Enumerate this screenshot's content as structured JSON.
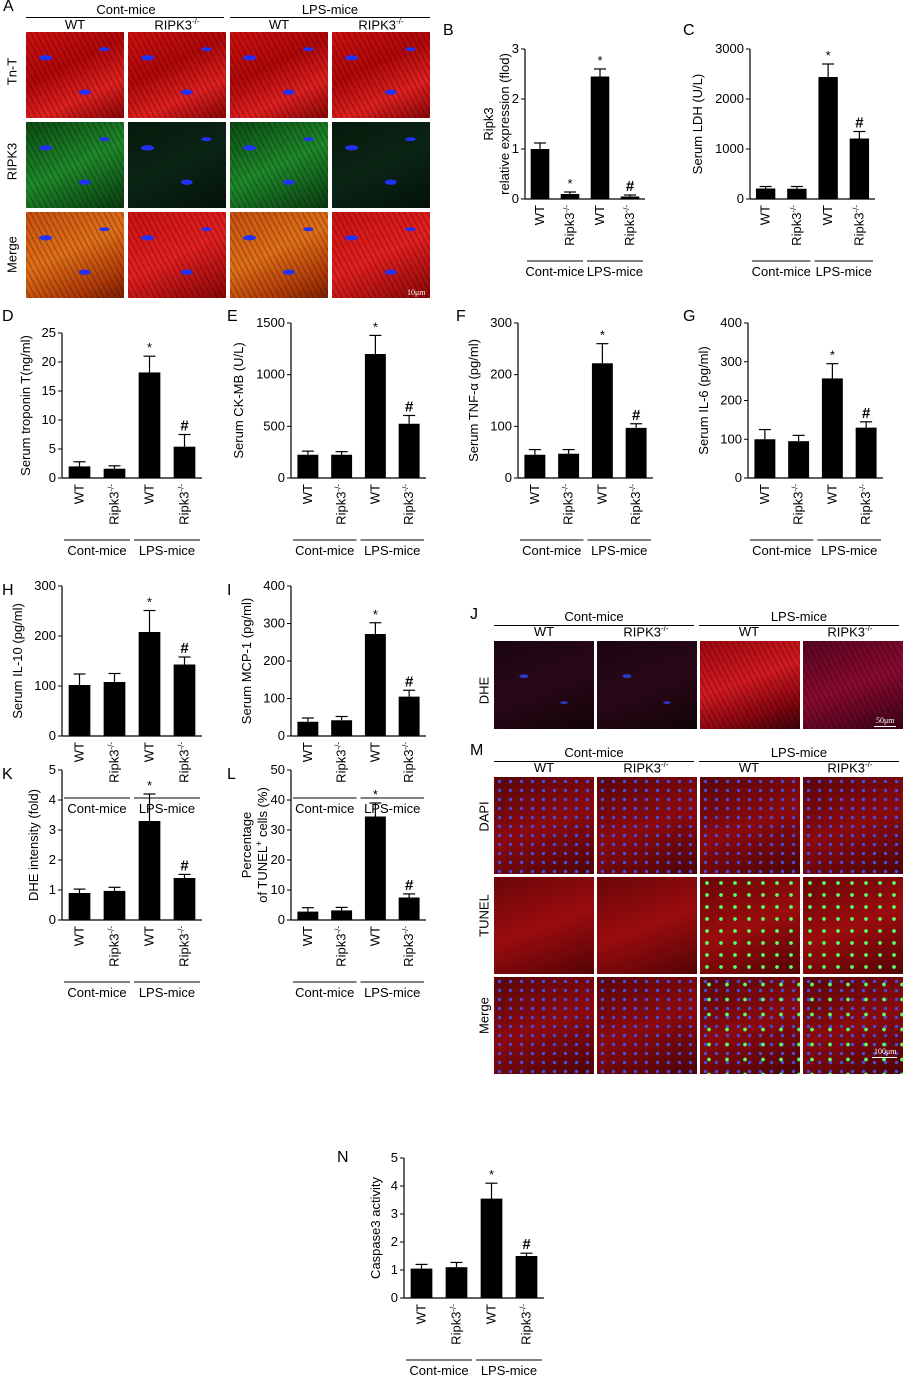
{
  "panel_A": {
    "letter": "A",
    "groups": [
      "Cont-mice",
      "LPS-mice"
    ],
    "columns": [
      "WT",
      "RIPK3",
      "WT",
      "RIPK3"
    ],
    "rows": [
      "Tn-T",
      "RIPK3",
      "Merge"
    ],
    "scale": "10μm"
  },
  "panel_J": {
    "letter": "J",
    "groups": [
      "Cont-mice",
      "LPS-mice"
    ],
    "columns": [
      "WT",
      "RIPK3",
      "WT",
      "RIPK3"
    ],
    "rows": [
      "DHE"
    ],
    "scale": "50μm"
  },
  "panel_M": {
    "letter": "M",
    "groups": [
      "Cont-mice",
      "LPS-mice"
    ],
    "columns": [
      "WT",
      "RIPK3",
      "WT",
      "RIPK3"
    ],
    "rows": [
      "DAPI",
      "TUNEL",
      "Merge"
    ],
    "scale": "100μm"
  },
  "chart_data": [
    {
      "id": "B",
      "type": "bar",
      "categories": [
        "WT",
        "Ripk3-/-",
        "WT",
        "Ripk3-/-"
      ],
      "groups": [
        "Cont-mice",
        "LPS-mice"
      ],
      "values": [
        1.0,
        0.1,
        2.45,
        0.05
      ],
      "errors": [
        0.12,
        0.04,
        0.15,
        0.03
      ],
      "marks": [
        "",
        "*",
        "*",
        "#"
      ],
      "ylabel": "Ripk3 relative expression (flod)",
      "ylim": [
        0,
        3
      ],
      "yticks": [
        0,
        1,
        2,
        3
      ]
    },
    {
      "id": "C",
      "type": "bar",
      "categories": [
        "WT",
        "Ripk3-/-",
        "WT",
        "Ripk3-/-"
      ],
      "groups": [
        "Cont-mice",
        "LPS-mice"
      ],
      "values": [
        210,
        205,
        2440,
        1210
      ],
      "errors": [
        40,
        45,
        260,
        140
      ],
      "marks": [
        "",
        "",
        "*",
        "#"
      ],
      "ylabel": "Serum LDH (U/L)",
      "ylim": [
        0,
        3000
      ],
      "yticks": [
        0,
        1000,
        2000,
        3000
      ]
    },
    {
      "id": "D",
      "type": "bar",
      "categories": [
        "WT",
        "Ripk3-/-",
        "WT",
        "Ripk3-/-"
      ],
      "groups": [
        "Cont-mice",
        "LPS-mice"
      ],
      "values": [
        2.0,
        1.6,
        18.2,
        5.4
      ],
      "errors": [
        0.8,
        0.5,
        2.8,
        2.1
      ],
      "marks": [
        "",
        "",
        "*",
        "#"
      ],
      "ylabel": "Serum troponin T(ng/ml)",
      "ylim": [
        0,
        25
      ],
      "yticks": [
        0,
        5,
        10,
        15,
        20,
        25
      ]
    },
    {
      "id": "E",
      "type": "bar",
      "categories": [
        "WT",
        "Ripk3-/-",
        "WT",
        "Ripk3-/-"
      ],
      "groups": [
        "Cont-mice",
        "LPS-mice"
      ],
      "values": [
        225,
        225,
        1200,
        525
      ],
      "errors": [
        35,
        30,
        180,
        80
      ],
      "marks": [
        "",
        "",
        "*",
        "#"
      ],
      "ylabel": "Serum CK-MB (U/L)",
      "ylim": [
        0,
        1500
      ],
      "yticks": [
        0,
        500,
        1000,
        1500
      ]
    },
    {
      "id": "F",
      "type": "bar",
      "categories": [
        "WT",
        "Ripk3-/-",
        "WT",
        "Ripk3-/-"
      ],
      "groups": [
        "Cont-mice",
        "LPS-mice"
      ],
      "values": [
        45,
        47,
        222,
        97
      ],
      "errors": [
        10,
        8,
        38,
        8
      ],
      "marks": [
        "",
        "",
        "*",
        "#"
      ],
      "ylabel": "Serum TNF-α (pg/ml)",
      "ylim": [
        0,
        300
      ],
      "yticks": [
        0,
        100,
        200,
        300
      ]
    },
    {
      "id": "G",
      "type": "bar",
      "categories": [
        "WT",
        "Ripk3-/-",
        "WT",
        "Ripk3-/-"
      ],
      "groups": [
        "Cont-mice",
        "LPS-mice"
      ],
      "values": [
        100,
        95,
        257,
        130
      ],
      "errors": [
        25,
        15,
        38,
        15
      ],
      "marks": [
        "",
        "",
        "*",
        "#"
      ],
      "ylabel": "Serum IL-6 (pg/ml)",
      "ylim": [
        0,
        400
      ],
      "yticks": [
        0,
        100,
        200,
        300,
        400
      ]
    },
    {
      "id": "H",
      "type": "bar",
      "categories": [
        "WT",
        "Ripk3-/-",
        "WT",
        "Ripk3-/-"
      ],
      "groups": [
        "Cont-mice",
        "LPS-mice"
      ],
      "values": [
        102,
        108,
        208,
        143
      ],
      "errors": [
        22,
        17,
        43,
        15
      ],
      "marks": [
        "",
        "",
        "*",
        "#"
      ],
      "ylabel": "Serum IL-10 (pg/ml)",
      "ylim": [
        0,
        300
      ],
      "yticks": [
        0,
        100,
        200,
        300
      ]
    },
    {
      "id": "I",
      "type": "bar",
      "categories": [
        "WT",
        "Ripk3-/-",
        "WT",
        "Ripk3-/-"
      ],
      "groups": [
        "Cont-mice",
        "LPS-mice"
      ],
      "values": [
        38,
        42,
        272,
        105
      ],
      "errors": [
        10,
        10,
        30,
        17
      ],
      "marks": [
        "",
        "",
        "*",
        "#"
      ],
      "ylabel": "Serum MCP-1 (pg/ml)",
      "ylim": [
        0,
        400
      ],
      "yticks": [
        0,
        100,
        200,
        300,
        400
      ]
    },
    {
      "id": "K",
      "type": "bar",
      "categories": [
        "WT",
        "Ripk3-/-",
        "WT",
        "Ripk3-/-"
      ],
      "groups": [
        "Cont-mice",
        "LPS-mice"
      ],
      "values": [
        0.9,
        0.97,
        3.3,
        1.4
      ],
      "errors": [
        0.13,
        0.12,
        0.9,
        0.12
      ],
      "marks": [
        "",
        "",
        "*",
        "#"
      ],
      "ylabel": "DHE intensity (fold)",
      "ylim": [
        0,
        5
      ],
      "yticks": [
        0,
        1,
        2,
        3,
        4,
        5
      ]
    },
    {
      "id": "L",
      "type": "bar",
      "categories": [
        "WT",
        "Ripk3-/-",
        "WT",
        "Ripk3-/-"
      ],
      "groups": [
        "Cont-mice",
        "LPS-mice"
      ],
      "values": [
        2.8,
        3.2,
        34.5,
        7.5
      ],
      "errors": [
        1.3,
        1.0,
        4.5,
        1.2
      ],
      "marks": [
        "",
        "",
        "*",
        "#"
      ],
      "ylabel": "Percentage of TUNEL+ cells (%)",
      "ylim": [
        0,
        50
      ],
      "yticks": [
        0,
        10,
        20,
        30,
        40,
        50
      ]
    },
    {
      "id": "N",
      "type": "bar",
      "categories": [
        "WT",
        "Ripk3-/-",
        "WT",
        "Ripk3-/-"
      ],
      "groups": [
        "Cont-mice",
        "LPS-mice"
      ],
      "values": [
        1.05,
        1.1,
        3.55,
        1.5
      ],
      "errors": [
        0.15,
        0.17,
        0.55,
        0.1
      ],
      "marks": [
        "",
        "",
        "*",
        "#"
      ],
      "ylabel": "Caspase3 activity",
      "ylim": [
        0,
        5
      ],
      "yticks": [
        0,
        1,
        2,
        3,
        4,
        5
      ]
    }
  ]
}
